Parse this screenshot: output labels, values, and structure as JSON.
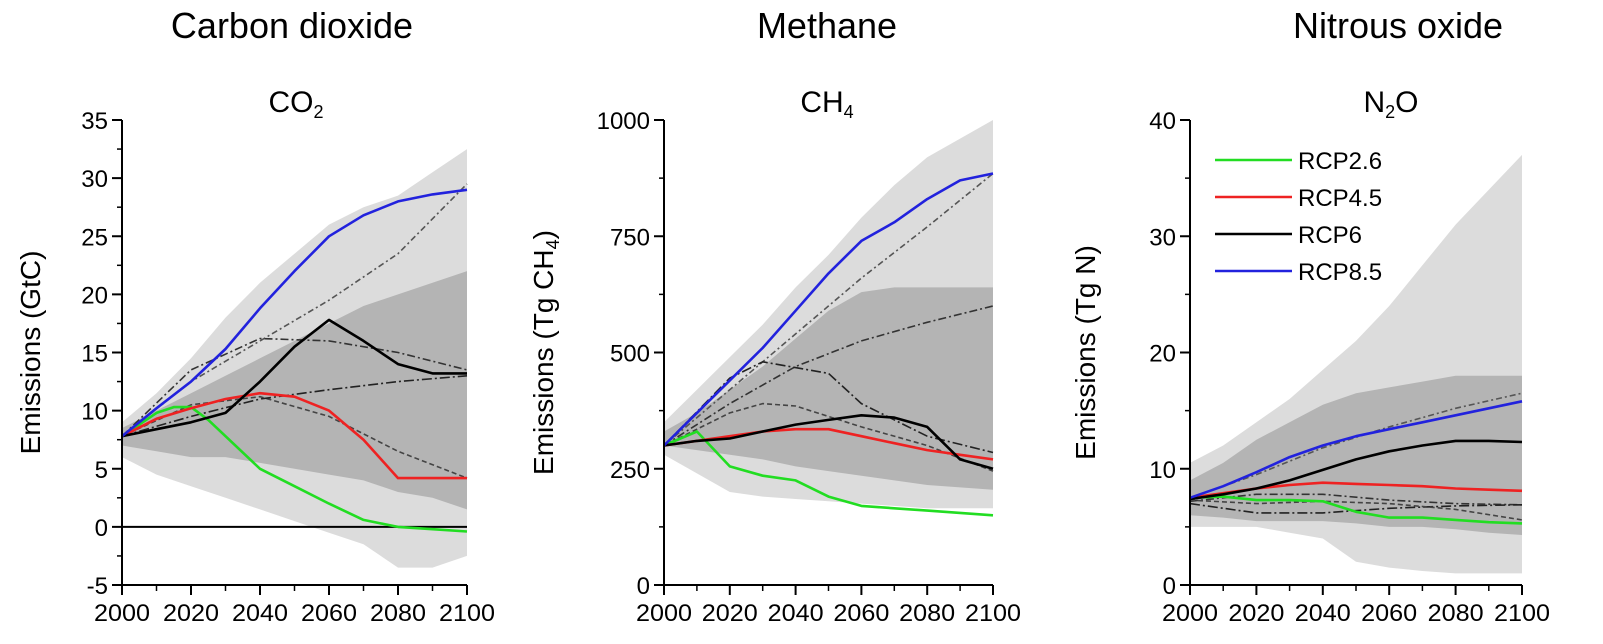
{
  "chart_data": [
    {
      "type": "line",
      "title": "Carbon dioxide",
      "subtitle": "CO",
      "subtitle_sub": "2",
      "ylabel": "Emissions (GtC)",
      "xlim": [
        2000,
        2100
      ],
      "ylim": [
        -5,
        35
      ],
      "xticks": [
        "2000",
        "2020",
        "2040",
        "2060",
        "2080",
        "2100"
      ],
      "yticks": [
        "-5",
        "0",
        "5",
        "10",
        "15",
        "20",
        "25",
        "30",
        "35"
      ],
      "zero_line": true,
      "bands": [
        {
          "name": "",
          "color": "#dcdcdc",
          "x": [
            2000,
            2010,
            2020,
            2030,
            2040,
            2050,
            2060,
            2070,
            2080,
            2090,
            2100
          ],
          "upper": [
            9,
            11.5,
            14.5,
            18,
            21,
            23.5,
            26,
            27.5,
            28.5,
            30.5,
            32.5
          ],
          "lower": [
            6,
            4.5,
            3.5,
            2.5,
            1.5,
            0.5,
            -0.5,
            -1.5,
            -3.5,
            -3.5,
            -2.5
          ]
        },
        {
          "name": "",
          "color": "#b4b4b4",
          "x": [
            2000,
            2010,
            2020,
            2030,
            2040,
            2050,
            2060,
            2070,
            2080,
            2090,
            2100
          ],
          "upper": [
            8.5,
            10,
            11.5,
            13,
            14.5,
            16,
            17.5,
            19,
            20,
            21,
            22
          ],
          "lower": [
            7,
            6.5,
            6,
            6,
            5.5,
            5,
            4.5,
            4,
            3,
            2.5,
            1.5
          ]
        }
      ],
      "series": [
        {
          "name": "RCP2.6",
          "color": "#22dd22",
          "x": [
            2000,
            2005,
            2010,
            2015,
            2020,
            2025,
            2030,
            2040,
            2050,
            2060,
            2070,
            2080,
            2090,
            2100
          ],
          "values": [
            7.8,
            8.8,
            9.8,
            10.3,
            10.3,
            9.2,
            7.8,
            5,
            3.5,
            2,
            0.6,
            0,
            -0.2,
            -0.4
          ]
        },
        {
          "name": "RCP4.5",
          "color": "#ee2222",
          "x": [
            2000,
            2010,
            2020,
            2030,
            2040,
            2050,
            2060,
            2070,
            2080,
            2090,
            2100
          ],
          "values": [
            7.8,
            9.3,
            10.2,
            11,
            11.5,
            11.2,
            10,
            7.5,
            4.2,
            4.2,
            4.2
          ]
        },
        {
          "name": "RCP6",
          "color": "#000000",
          "x": [
            2000,
            2010,
            2020,
            2030,
            2040,
            2050,
            2060,
            2070,
            2080,
            2090,
            2100
          ],
          "values": [
            7.8,
            8.4,
            9,
            9.8,
            12.5,
            15.5,
            17.8,
            16,
            14,
            13.2,
            13.2
          ]
        },
        {
          "name": "RCP8.5",
          "color": "#2222dd",
          "x": [
            2000,
            2010,
            2020,
            2030,
            2040,
            2050,
            2060,
            2070,
            2080,
            2090,
            2100
          ],
          "values": [
            7.8,
            10.2,
            12.5,
            15.3,
            18.8,
            22,
            25,
            26.8,
            28,
            28.6,
            29
          ]
        },
        {
          "name": "",
          "color": "#555555",
          "dash": "6 3 2 3",
          "x": [
            2000,
            2020,
            2040,
            2060,
            2080,
            2100
          ],
          "values": [
            7.8,
            12.5,
            16,
            19.5,
            23.5,
            29.5
          ]
        },
        {
          "name": "",
          "color": "#333333",
          "dash": "8 3 2 3",
          "x": [
            2000,
            2020,
            2040,
            2060,
            2080,
            2100
          ],
          "values": [
            7.8,
            13.5,
            16.2,
            16,
            15,
            13.5
          ]
        },
        {
          "name": "",
          "color": "#444444",
          "dash": "5 3",
          "x": [
            2000,
            2020,
            2040,
            2060,
            2080,
            2100
          ],
          "values": [
            7.8,
            10.5,
            11.2,
            9.5,
            6.5,
            4.2
          ]
        },
        {
          "name": "",
          "color": "#222222",
          "dash": "10 3 2 3",
          "x": [
            2000,
            2020,
            2040,
            2060,
            2080,
            2100
          ],
          "values": [
            7.8,
            9.5,
            11,
            11.8,
            12.5,
            13
          ]
        }
      ]
    },
    {
      "type": "line",
      "title": "Methane",
      "subtitle": "CH",
      "subtitle_sub": "4",
      "ylabel": "Emissions (Tg CH",
      "ylabel_sub": "4",
      "ylabel_end": ")",
      "xlim": [
        2000,
        2100
      ],
      "ylim": [
        0,
        1000
      ],
      "xticks": [
        "2000",
        "2020",
        "2040",
        "2060",
        "2080",
        "2100"
      ],
      "yticks": [
        "0",
        "250",
        "500",
        "750",
        "1000"
      ],
      "zero_line": false,
      "bands": [
        {
          "name": "",
          "color": "#dcdcdc",
          "x": [
            2000,
            2010,
            2020,
            2030,
            2040,
            2050,
            2060,
            2070,
            2080,
            2090,
            2100
          ],
          "upper": [
            350,
            420,
            490,
            560,
            640,
            710,
            790,
            860,
            920,
            960,
            1000
          ],
          "lower": [
            280,
            240,
            200,
            190,
            185,
            180,
            175,
            170,
            165,
            165,
            165
          ]
        },
        {
          "name": "",
          "color": "#b4b4b4",
          "x": [
            2000,
            2010,
            2020,
            2030,
            2040,
            2050,
            2060,
            2070,
            2080,
            2090,
            2100
          ],
          "upper": [
            330,
            370,
            420,
            470,
            530,
            590,
            630,
            640,
            640,
            640,
            640
          ],
          "lower": [
            300,
            290,
            280,
            270,
            255,
            245,
            235,
            225,
            215,
            210,
            205
          ]
        }
      ],
      "series": [
        {
          "name": "RCP2.6",
          "color": "#22dd22",
          "x": [
            2000,
            2010,
            2020,
            2030,
            2040,
            2050,
            2060,
            2070,
            2080,
            2090,
            2100
          ],
          "values": [
            300,
            330,
            255,
            235,
            225,
            190,
            170,
            165,
            160,
            155,
            150
          ]
        },
        {
          "name": "RCP4.5",
          "color": "#ee2222",
          "x": [
            2000,
            2010,
            2020,
            2030,
            2040,
            2050,
            2060,
            2070,
            2080,
            2090,
            2100
          ],
          "values": [
            300,
            310,
            320,
            330,
            335,
            335,
            320,
            305,
            290,
            280,
            270
          ]
        },
        {
          "name": "RCP6",
          "color": "#000000",
          "x": [
            2000,
            2010,
            2020,
            2030,
            2040,
            2050,
            2060,
            2070,
            2080,
            2090,
            2100
          ],
          "values": [
            300,
            310,
            315,
            330,
            345,
            355,
            365,
            360,
            340,
            270,
            250
          ]
        },
        {
          "name": "RCP8.5",
          "color": "#2222dd",
          "x": [
            2000,
            2010,
            2020,
            2030,
            2040,
            2050,
            2060,
            2070,
            2080,
            2090,
            2100
          ],
          "values": [
            300,
            370,
            440,
            510,
            590,
            670,
            740,
            780,
            830,
            870,
            885
          ]
        },
        {
          "name": "",
          "color": "#555555",
          "dash": "6 3 2 3",
          "x": [
            2000,
            2020,
            2040,
            2060,
            2080,
            2100
          ],
          "values": [
            300,
            420,
            540,
            660,
            770,
            885
          ]
        },
        {
          "name": "",
          "color": "#333333",
          "dash": "8 3 2 3",
          "x": [
            2000,
            2020,
            2040,
            2060,
            2080,
            2100
          ],
          "values": [
            300,
            390,
            470,
            525,
            565,
            600
          ]
        },
        {
          "name": "",
          "color": "#222222",
          "dash": "10 3 2 3",
          "x": [
            2000,
            2020,
            2030,
            2050,
            2060,
            2080,
            2100
          ],
          "values": [
            300,
            445,
            480,
            455,
            390,
            320,
            285
          ]
        },
        {
          "name": "",
          "color": "#444444",
          "dash": "5 3",
          "x": [
            2000,
            2020,
            2030,
            2040,
            2060,
            2080,
            2100
          ],
          "values": [
            300,
            370,
            390,
            385,
            340,
            300,
            245
          ]
        }
      ]
    },
    {
      "type": "line",
      "title": "Nitrous oxide",
      "subtitle": "N",
      "subtitle_sub": "2",
      "subtitle_end": "O",
      "ylabel": "Emissions (Tg N)",
      "xlim": [
        2000,
        2100
      ],
      "ylim": [
        0,
        40
      ],
      "xticks": [
        "2000",
        "2020",
        "2040",
        "2060",
        "2080",
        "2100"
      ],
      "yticks": [
        "0",
        "10",
        "20",
        "30",
        "40"
      ],
      "zero_line": false,
      "legend": {
        "position": "top-left",
        "entries": [
          "RCP2.6",
          "RCP4.5",
          "RCP6",
          "RCP8.5"
        ]
      },
      "bands": [
        {
          "name": "",
          "color": "#dcdcdc",
          "x": [
            2000,
            2010,
            2020,
            2030,
            2040,
            2050,
            2060,
            2070,
            2080,
            2090,
            2100
          ],
          "upper": [
            10.5,
            12,
            14,
            16,
            18.5,
            21,
            24,
            27.5,
            31,
            34,
            37
          ],
          "lower": [
            5,
            5,
            5,
            4.5,
            4,
            2,
            1.5,
            1.2,
            1,
            1,
            1
          ]
        },
        {
          "name": "",
          "color": "#b4b4b4",
          "x": [
            2000,
            2010,
            2020,
            2030,
            2040,
            2050,
            2060,
            2070,
            2080,
            2090,
            2100
          ],
          "upper": [
            9,
            10.5,
            12.5,
            14,
            15.5,
            16.5,
            17,
            17.5,
            18,
            18,
            18
          ],
          "lower": [
            6,
            5.8,
            5.5,
            5.5,
            5.5,
            5.3,
            5,
            5,
            4.8,
            4.5,
            4.3
          ]
        }
      ],
      "series": [
        {
          "name": "RCP2.6",
          "color": "#22dd22",
          "x": [
            2000,
            2010,
            2020,
            2030,
            2040,
            2050,
            2060,
            2070,
            2080,
            2090,
            2100
          ],
          "values": [
            7.5,
            7.6,
            7.3,
            7.3,
            7.2,
            6.3,
            5.8,
            5.8,
            5.6,
            5.4,
            5.3
          ]
        },
        {
          "name": "RCP4.5",
          "color": "#ee2222",
          "x": [
            2000,
            2010,
            2020,
            2030,
            2040,
            2050,
            2060,
            2070,
            2080,
            2090,
            2100
          ],
          "values": [
            7.5,
            7.9,
            8.3,
            8.6,
            8.8,
            8.7,
            8.6,
            8.5,
            8.3,
            8.2,
            8.1
          ]
        },
        {
          "name": "RCP6",
          "color": "#000000",
          "x": [
            2000,
            2010,
            2020,
            2030,
            2040,
            2050,
            2060,
            2070,
            2080,
            2090,
            2100
          ],
          "values": [
            7.4,
            7.8,
            8.3,
            9,
            9.9,
            10.8,
            11.5,
            12,
            12.4,
            12.4,
            12.3
          ]
        },
        {
          "name": "RCP8.5",
          "color": "#2222dd",
          "x": [
            2000,
            2010,
            2020,
            2030,
            2040,
            2050,
            2060,
            2070,
            2080,
            2090,
            2100
          ],
          "values": [
            7.5,
            8.5,
            9.7,
            11,
            12,
            12.8,
            13.4,
            14,
            14.6,
            15.2,
            15.8
          ]
        },
        {
          "name": "",
          "color": "#555555",
          "dash": "6 3 2 3",
          "x": [
            2000,
            2020,
            2040,
            2060,
            2080,
            2100
          ],
          "values": [
            7.5,
            9.5,
            11.8,
            13.6,
            15.2,
            16.5
          ]
        },
        {
          "name": "",
          "color": "#333333",
          "dash": "8 3 2 3",
          "x": [
            2000,
            2020,
            2040,
            2060,
            2080,
            2100
          ],
          "values": [
            7.2,
            7.8,
            7.8,
            7.3,
            7,
            6.9
          ]
        },
        {
          "name": "",
          "color": "#222222",
          "dash": "10 3 2 3",
          "x": [
            2000,
            2020,
            2040,
            2060,
            2080,
            2100
          ],
          "values": [
            7,
            6.2,
            6.2,
            6.6,
            6.8,
            6.9
          ]
        },
        {
          "name": "",
          "color": "#444444",
          "dash": "5 3",
          "x": [
            2000,
            2020,
            2040,
            2060,
            2080,
            2100
          ],
          "values": [
            7.3,
            7,
            7.2,
            7,
            6.5,
            5.6
          ]
        }
      ]
    }
  ]
}
